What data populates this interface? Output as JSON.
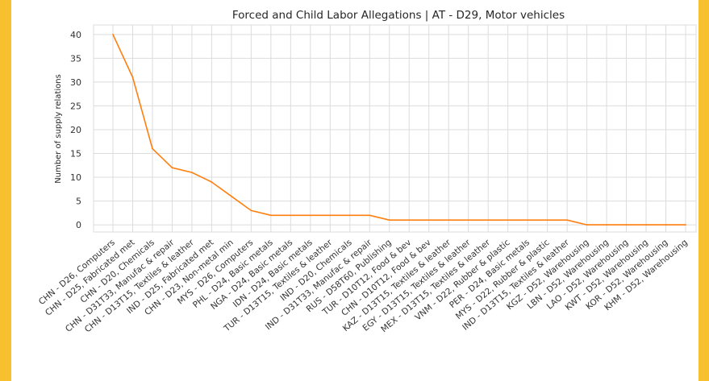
{
  "chart_data": {
    "type": "line",
    "title": "Forced and Child Labor Allegations | AT - D29, Motor vehicles",
    "xlabel": "",
    "ylabel": "Number of supply relations",
    "ylim": [
      -1.5,
      42
    ],
    "yticks": [
      0,
      5,
      10,
      15,
      20,
      25,
      30,
      35,
      40
    ],
    "grid": true,
    "line_color": "#ff7f0e",
    "categories": [
      "CHN - D26, Computers",
      "CHN - D25, Fabricated met",
      "CHN - D20, Chemicals",
      "CHN - D31T33, Manufac & repair",
      "CHN - D13T15, Textiles & leather",
      "IND - D25, Fabricated met",
      "CHN - D23, Non-metal min",
      "MYS - D26, Computers",
      "PHL - D24, Basic metals",
      "NGA - D24, Basic metals",
      "IDN - D24, Basic metals",
      "TUR - D13T15, Textiles & leather",
      "IND - D20, Chemicals",
      "IND - D31T33, Manufac & repair",
      "RUS - D58T60, Publishing",
      "TUR - D10T12, Food & bev",
      "CHN - D10T12, Food & bev",
      "KAZ - D13T15, Textiles & leather",
      "EGY - D13T15, Textiles & leather",
      "MEX - D13T15, Textiles & leather",
      "VNM - D22, Rubber & plastic",
      "PER - D24, Basic metals",
      "MYS - D22, Rubber & plastic",
      "IND - D13T15, Textiles & leather",
      "KGZ - D52, Warehousing",
      "LBN - D52, Warehousing",
      "LAO - D52, Warehousing",
      "KWT - D52, Warehousing",
      "KOR - D52, Warehousing",
      "KHM - D52, Warehousing"
    ],
    "values": [
      40,
      31,
      16,
      12,
      11,
      9,
      6,
      3,
      2,
      2,
      2,
      2,
      2,
      2,
      1,
      1,
      1,
      1,
      1,
      1,
      1,
      1,
      1,
      1,
      0,
      0,
      0,
      0,
      0,
      0
    ]
  }
}
